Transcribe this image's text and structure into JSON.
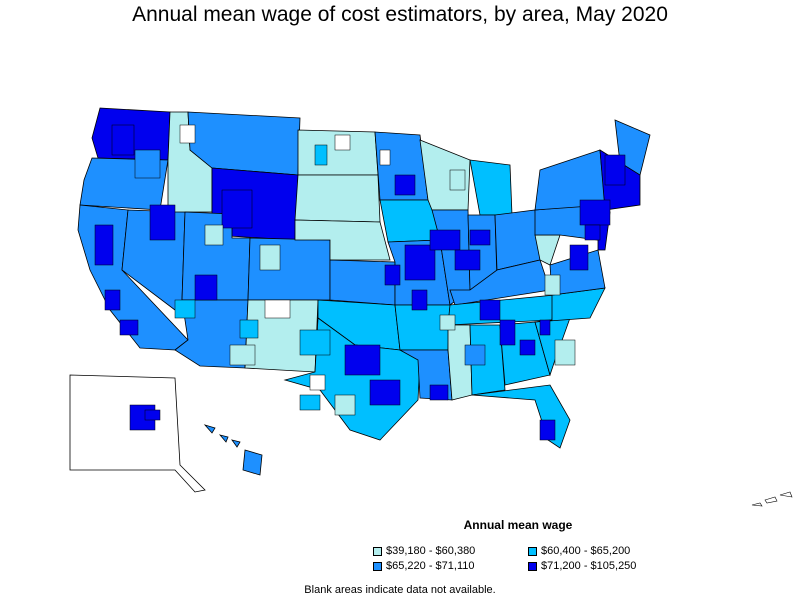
{
  "title": "Annual mean wage of cost estimators, by area, May 2020",
  "legend": {
    "title": "Annual mean wage",
    "items": [
      {
        "label": "$39,180 - $60,380",
        "color": "#b3eeee"
      },
      {
        "label": "$60,400 - $65,200",
        "color": "#00bfff"
      },
      {
        "label": "$65,220 - $71,110",
        "color": "#1e90ff"
      },
      {
        "label": "$71,200 - $105,250",
        "color": "#0000ee"
      }
    ]
  },
  "footnote": "Blank areas indicate data not available.",
  "colors": {
    "outline": "#000000",
    "no_data": "#ffffff",
    "background": "#ffffff"
  },
  "regions": [
    {
      "name": "Washington",
      "class": 3
    },
    {
      "name": "Oregon",
      "class": 2
    },
    {
      "name": "California",
      "class": 2
    },
    {
      "name": "Nevada",
      "class": 2
    },
    {
      "name": "Idaho",
      "class": 0
    },
    {
      "name": "Montana",
      "class": 2
    },
    {
      "name": "Wyoming",
      "class": 3
    },
    {
      "name": "Utah",
      "class": 2
    },
    {
      "name": "Colorado",
      "class": 2
    },
    {
      "name": "Arizona",
      "class": 2
    },
    {
      "name": "New Mexico",
      "class": 0
    },
    {
      "name": "North Dakota",
      "class": 0
    },
    {
      "name": "South Dakota",
      "class": 0
    },
    {
      "name": "Nebraska",
      "class": 0
    },
    {
      "name": "Kansas",
      "class": 2
    },
    {
      "name": "Oklahoma",
      "class": 1
    },
    {
      "name": "Texas",
      "class": 1
    },
    {
      "name": "Minnesota",
      "class": 2
    },
    {
      "name": "Iowa",
      "class": 1
    },
    {
      "name": "Missouri",
      "class": 2
    },
    {
      "name": "Arkansas",
      "class": 1
    },
    {
      "name": "Louisiana",
      "class": 2
    },
    {
      "name": "Wisconsin",
      "class": 0
    },
    {
      "name": "Illinois",
      "class": 2
    },
    {
      "name": "Michigan",
      "class": 1
    },
    {
      "name": "Indiana",
      "class": 2
    },
    {
      "name": "Ohio",
      "class": 2
    },
    {
      "name": "Kentucky",
      "class": 2
    },
    {
      "name": "Tennessee",
      "class": 1
    },
    {
      "name": "Mississippi",
      "class": 0
    },
    {
      "name": "Alabama",
      "class": 1
    },
    {
      "name": "Georgia",
      "class": 1
    },
    {
      "name": "Florida",
      "class": 1
    },
    {
      "name": "South Carolina",
      "class": 1
    },
    {
      "name": "North Carolina",
      "class": 1
    },
    {
      "name": "Virginia",
      "class": 2
    },
    {
      "name": "West Virginia",
      "class": 0
    },
    {
      "name": "Pennsylvania",
      "class": 2
    },
    {
      "name": "New York",
      "class": 2
    },
    {
      "name": "Maine",
      "class": 2
    },
    {
      "name": "New England",
      "class": 3
    },
    {
      "name": "Mid-Atlantic",
      "class": 3
    },
    {
      "name": "Alaska",
      "class": 4
    },
    {
      "name": "Hawaii",
      "class": 2
    }
  ]
}
